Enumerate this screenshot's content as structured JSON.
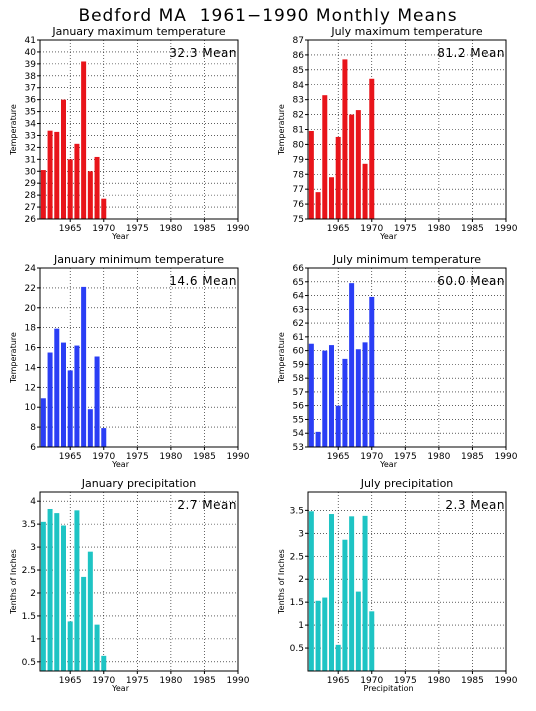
{
  "page": {
    "title": "Bedford MA  1961−1990 Monthly Means"
  },
  "chart_data": [
    {
      "id": "jan-max",
      "type": "bar",
      "title": "January maximum temperature",
      "ylabel": "Temperature",
      "xlabel": "Year",
      "mean_label": "32.3 Mean",
      "color": "#e8141a",
      "xlim": [
        1960.5,
        1990
      ],
      "ylim": [
        26,
        41
      ],
      "yticks": [
        26,
        27,
        28,
        29,
        30,
        31,
        32,
        33,
        34,
        35,
        36,
        37,
        38,
        39,
        40,
        41
      ],
      "ytick_labels": [
        "26",
        "27",
        "28",
        "29",
        "30",
        "31",
        "32",
        "33",
        "34",
        "35",
        "36",
        "37",
        "38",
        "39",
        "40",
        "41"
      ],
      "xticks": [
        1965,
        1970,
        1975,
        1980,
        1985,
        1990
      ],
      "xtick_labels": [
        "1965",
        "1970",
        "1975",
        "1980",
        "1985",
        "1990"
      ],
      "grid": true,
      "x": [
        1961,
        1962,
        1963,
        1964,
        1965,
        1966,
        1967,
        1968,
        1969,
        1970
      ],
      "values": [
        30.1,
        33.4,
        33.3,
        36.0,
        31.0,
        32.3,
        39.2,
        30.0,
        31.2,
        27.7
      ]
    },
    {
      "id": "jul-max",
      "type": "bar",
      "title": "July maximum temperature",
      "ylabel": "Temperature",
      "xlabel": "Year",
      "mean_label": "81.2 Mean",
      "color": "#e8141a",
      "xlim": [
        1960.5,
        1990
      ],
      "ylim": [
        75,
        87
      ],
      "yticks": [
        75,
        76,
        77,
        78,
        79,
        80,
        81,
        82,
        83,
        84,
        85,
        86,
        87
      ],
      "ytick_labels": [
        "75",
        "76",
        "77",
        "78",
        "79",
        "80",
        "81",
        "82",
        "83",
        "84",
        "85",
        "86",
        "87"
      ],
      "xticks": [
        1965,
        1970,
        1975,
        1980,
        1985,
        1990
      ],
      "xtick_labels": [
        "1965",
        "1970",
        "1975",
        "1980",
        "1985",
        "1990"
      ],
      "grid": true,
      "x": [
        1961,
        1962,
        1963,
        1964,
        1965,
        1966,
        1967,
        1968,
        1969,
        1970
      ],
      "values": [
        80.9,
        76.8,
        83.3,
        77.8,
        80.5,
        85.7,
        82.0,
        82.3,
        78.7,
        84.4
      ]
    },
    {
      "id": "jan-min",
      "type": "bar",
      "title": "January minimum temperature",
      "ylabel": "Temperature",
      "xlabel": "Year",
      "mean_label": "14.6 Mean",
      "color": "#2a3ef5",
      "xlim": [
        1960.5,
        1990
      ],
      "ylim": [
        6,
        24
      ],
      "yticks": [
        6,
        8,
        10,
        12,
        14,
        16,
        18,
        20,
        22,
        24
      ],
      "ytick_labels": [
        "6",
        "8",
        "10",
        "12",
        "14",
        "16",
        "18",
        "20",
        "22",
        "24"
      ],
      "xticks": [
        1965,
        1970,
        1975,
        1980,
        1985,
        1990
      ],
      "xtick_labels": [
        "1965",
        "1970",
        "1975",
        "1980",
        "1985",
        "1990"
      ],
      "grid": true,
      "x": [
        1961,
        1962,
        1963,
        1964,
        1965,
        1966,
        1967,
        1968,
        1969,
        1970
      ],
      "values": [
        10.9,
        15.5,
        17.9,
        16.5,
        13.7,
        16.2,
        22.1,
        9.8,
        15.1,
        7.9
      ]
    },
    {
      "id": "jul-min",
      "type": "bar",
      "title": "July minimum temperature",
      "ylabel": "Temperature",
      "xlabel": "Year",
      "mean_label": "60.0 Mean",
      "color": "#2a3ef5",
      "xlim": [
        1960.5,
        1990
      ],
      "ylim": [
        53,
        66
      ],
      "yticks": [
        53,
        54,
        55,
        56,
        57,
        58,
        59,
        60,
        61,
        62,
        63,
        64,
        65,
        66
      ],
      "ytick_labels": [
        "53",
        "54",
        "55",
        "56",
        "57",
        "58",
        "59",
        "60",
        "61",
        "62",
        "63",
        "64",
        "65",
        "66"
      ],
      "xticks": [
        1965,
        1970,
        1975,
        1980,
        1985,
        1990
      ],
      "xtick_labels": [
        "1965",
        "1970",
        "1975",
        "1980",
        "1985",
        "1990"
      ],
      "grid": true,
      "x": [
        1961,
        1962,
        1963,
        1964,
        1965,
        1966,
        1967,
        1968,
        1969,
        1970
      ],
      "values": [
        60.5,
        54.1,
        60.0,
        60.4,
        56.0,
        59.4,
        64.9,
        60.1,
        60.6,
        63.9
      ]
    },
    {
      "id": "jan-precip",
      "type": "bar",
      "title": "January precipitation",
      "ylabel": "Tenths of Inches",
      "xlabel": "Year",
      "mean_label": "2.7 Mean",
      "color": "#1ec4c4",
      "xlim": [
        1960.5,
        1990
      ],
      "ylim": [
        0.3,
        4.2
      ],
      "yticks": [
        0.5,
        1,
        1.5,
        2,
        2.5,
        3,
        3.5,
        4
      ],
      "ytick_labels": [
        "0.5",
        "1",
        "1.5",
        "2",
        "2.5",
        "3",
        "3.5",
        "4"
      ],
      "xticks": [
        1965,
        1970,
        1975,
        1980,
        1985,
        1990
      ],
      "xtick_labels": [
        "1965",
        "1970",
        "1975",
        "1980",
        "1985",
        "1990"
      ],
      "grid": true,
      "x": [
        1961,
        1962,
        1963,
        1964,
        1965,
        1966,
        1967,
        1968,
        1969,
        1970
      ],
      "values": [
        3.55,
        3.83,
        3.74,
        3.47,
        1.38,
        3.8,
        2.35,
        2.9,
        1.31,
        0.63
      ]
    },
    {
      "id": "jul-precip",
      "type": "bar",
      "title": "July precipitation",
      "ylabel": "Tenths of Inches",
      "xlabel": "Precipitation",
      "mean_label": "2.3 Mean",
      "color": "#1ec4c4",
      "xlim": [
        1960.5,
        1990
      ],
      "ylim": [
        0,
        3.9
      ],
      "yticks": [
        0.5,
        1,
        1.5,
        2,
        2.5,
        3,
        3.5
      ],
      "ytick_labels": [
        "0.5",
        "1",
        "1.5",
        "2",
        "2.5",
        "3",
        "3.5"
      ],
      "xticks": [
        1965,
        1970,
        1975,
        1980,
        1985,
        1990
      ],
      "xtick_labels": [
        "1965",
        "1970",
        "1975",
        "1980",
        "1985",
        "1990"
      ],
      "grid": true,
      "x": [
        1961,
        1962,
        1963,
        1964,
        1965,
        1966,
        1967,
        1968,
        1969,
        1970
      ],
      "values": [
        3.48,
        1.53,
        1.6,
        3.42,
        0.57,
        2.86,
        3.37,
        1.73,
        3.38,
        1.3
      ]
    }
  ]
}
